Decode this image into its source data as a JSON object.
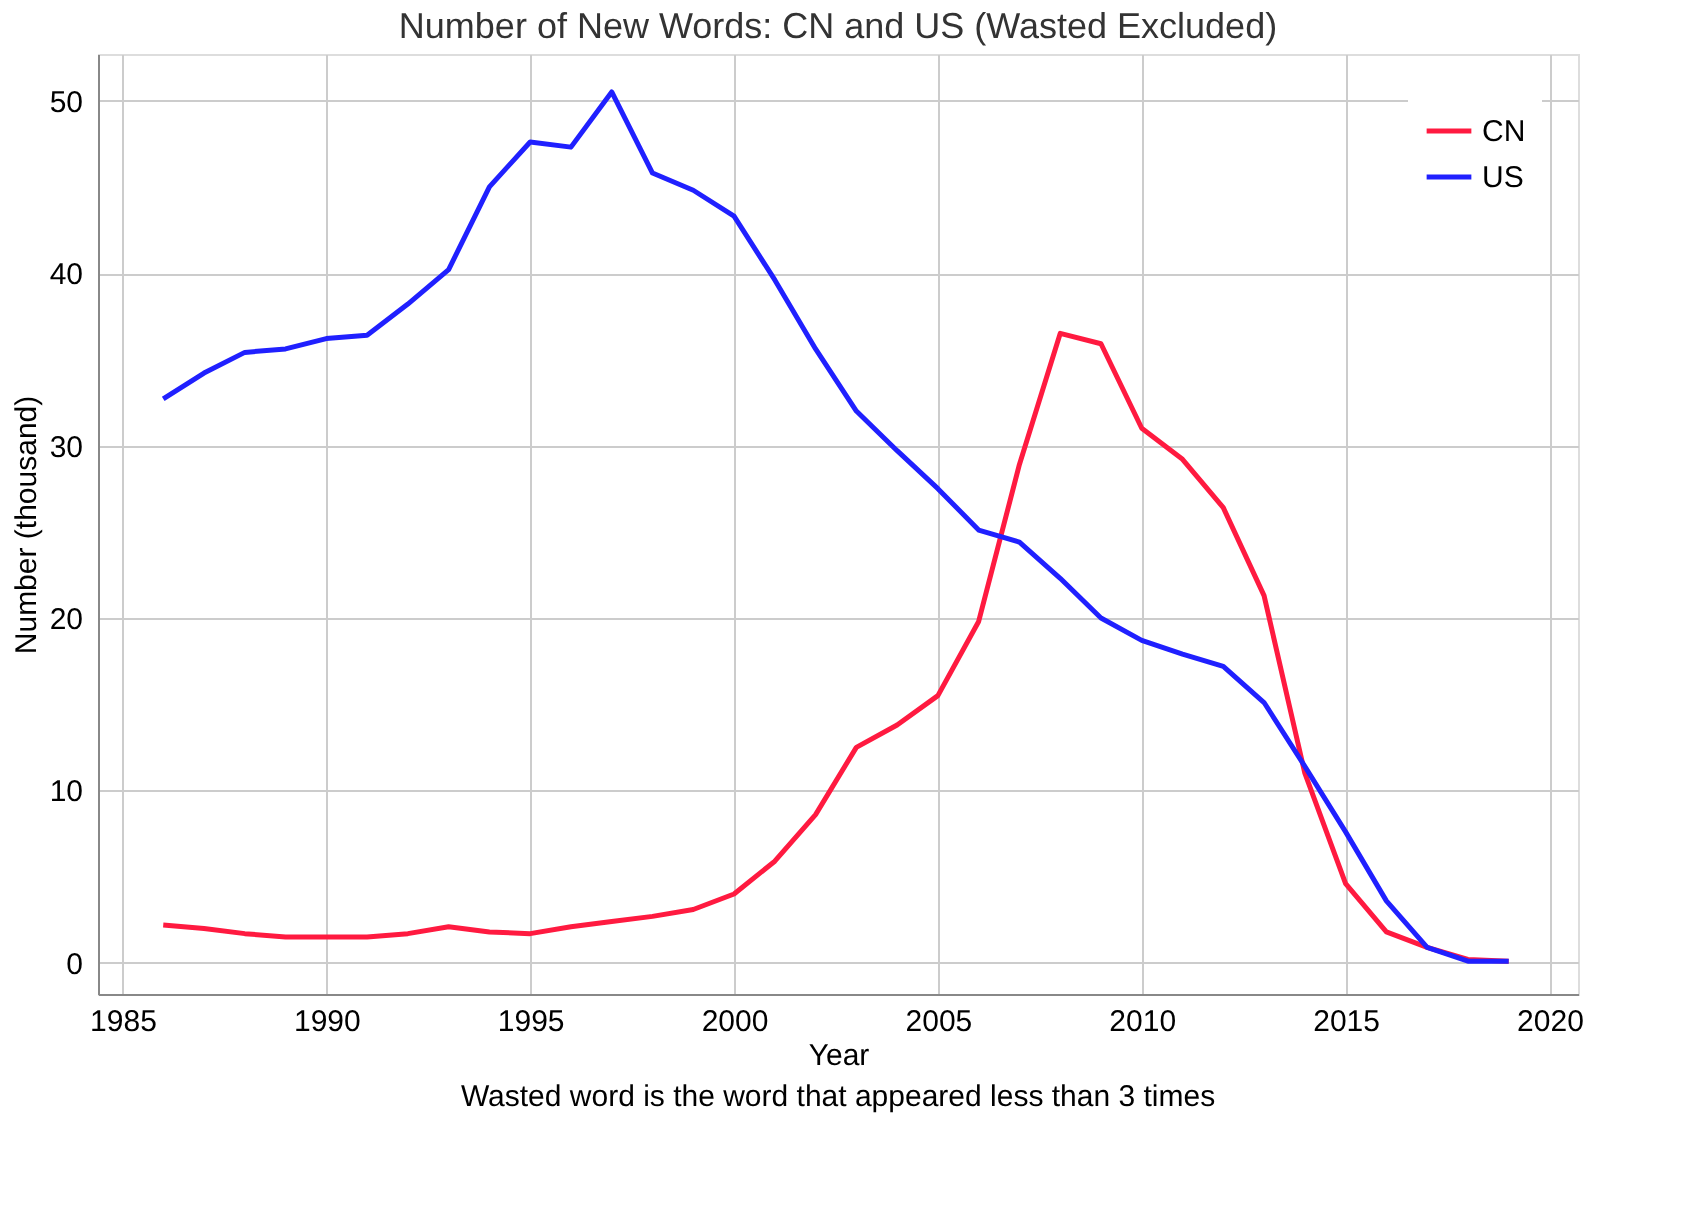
{
  "chart_data": {
    "type": "line",
    "title": "Number of New Words: CN and US (Wasted Excluded)",
    "xlabel": "Year",
    "ylabel": "Number (thousand)",
    "annotations": [
      "Wasted word is the word that appeared less than 3 times"
    ],
    "x": [
      1986,
      1987,
      1988,
      1989,
      1990,
      1991,
      1992,
      1993,
      1994,
      1995,
      1996,
      1997,
      1998,
      1999,
      2000,
      2001,
      2002,
      2003,
      2004,
      2005,
      2006,
      2007,
      2008,
      2009,
      2010,
      2011,
      2012,
      2013,
      2014,
      2015,
      2016,
      2017,
      2018,
      2019
    ],
    "series": [
      {
        "name": "CN",
        "color": "#ff1a40",
        "values": [
          2.2,
          2.0,
          1.7,
          1.5,
          1.5,
          1.5,
          1.7,
          2.1,
          1.8,
          1.7,
          2.1,
          2.4,
          2.7,
          3.1,
          4.0,
          5.9,
          8.6,
          12.5,
          13.8,
          15.5,
          19.8,
          28.9,
          36.5,
          35.9,
          31.0,
          29.2,
          26.4,
          21.3,
          11.0,
          4.6,
          1.8,
          0.9,
          0.2,
          0.1
        ]
      },
      {
        "name": "US",
        "color": "#2020ff",
        "values": [
          32.7,
          34.2,
          35.4,
          35.6,
          36.2,
          36.4,
          38.2,
          40.2,
          45.0,
          47.6,
          47.3,
          50.5,
          45.8,
          44.8,
          43.3,
          39.6,
          35.6,
          32.0,
          29.7,
          27.5,
          25.1,
          24.4,
          22.3,
          20.0,
          18.7,
          17.9,
          17.2,
          15.1,
          11.4,
          7.6,
          3.6,
          0.9,
          0.1,
          0.1
        ]
      }
    ],
    "xlim": [
      1984.4,
      2020.7
    ],
    "xticks": [
      1985,
      1990,
      1995,
      2000,
      2005,
      2010,
      2015,
      2020
    ],
    "ylim": [
      -1.8,
      52.7
    ],
    "yticks": [
      0,
      10,
      20,
      30,
      40,
      50
    ],
    "grid": true,
    "legend": "top right",
    "marker": "none",
    "line_style": "solid"
  }
}
